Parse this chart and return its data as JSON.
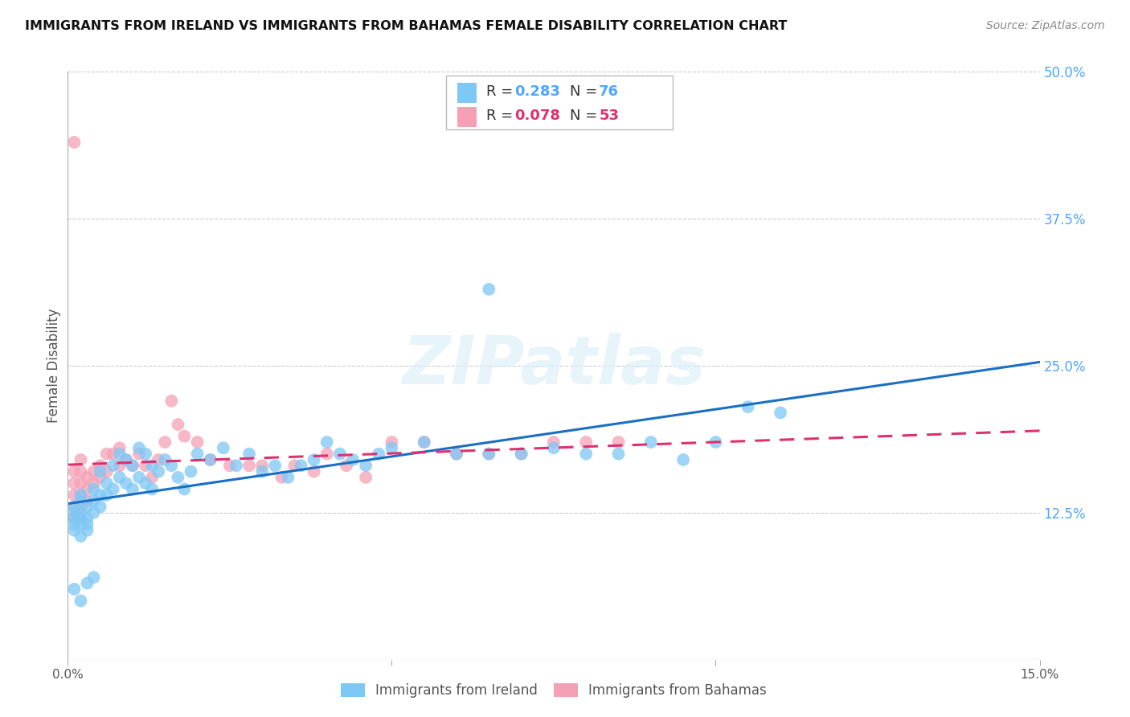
{
  "title": "IMMIGRANTS FROM IRELAND VS IMMIGRANTS FROM BAHAMAS FEMALE DISABILITY CORRELATION CHART",
  "source": "Source: ZipAtlas.com",
  "ylabel": "Female Disability",
  "xlim": [
    0.0,
    0.15
  ],
  "ylim": [
    0.0,
    0.5
  ],
  "yticks_right": [
    0.0,
    0.125,
    0.25,
    0.375,
    0.5
  ],
  "yticklabels_right": [
    "",
    "12.5%",
    "25.0%",
    "37.5%",
    "50.0%"
  ],
  "R_ireland": 0.283,
  "N_ireland": 76,
  "R_bahamas": 0.078,
  "N_bahamas": 53,
  "color_ireland": "#7ec8f5",
  "color_bahamas": "#f5a0b5",
  "line_ireland": "#1a6fc4",
  "line_bahamas": "#e03070",
  "legend_label_ireland": "Immigrants from Ireland",
  "legend_label_bahamas": "Immigrants from Bahamas",
  "ireland_x": [
    0.001,
    0.001,
    0.001,
    0.001,
    0.001,
    0.002,
    0.002,
    0.002,
    0.002,
    0.002,
    0.002,
    0.003,
    0.003,
    0.003,
    0.003,
    0.004,
    0.004,
    0.004,
    0.005,
    0.005,
    0.005,
    0.006,
    0.006,
    0.007,
    0.007,
    0.008,
    0.008,
    0.009,
    0.009,
    0.01,
    0.01,
    0.011,
    0.011,
    0.012,
    0.012,
    0.013,
    0.013,
    0.014,
    0.015,
    0.016,
    0.017,
    0.018,
    0.019,
    0.02,
    0.022,
    0.024,
    0.026,
    0.028,
    0.03,
    0.032,
    0.034,
    0.036,
    0.038,
    0.04,
    0.042,
    0.044,
    0.046,
    0.048,
    0.05,
    0.055,
    0.06,
    0.065,
    0.07,
    0.075,
    0.08,
    0.085,
    0.09,
    0.095,
    0.1,
    0.105,
    0.065,
    0.11,
    0.001,
    0.002,
    0.003,
    0.004
  ],
  "ireland_y": [
    0.13,
    0.125,
    0.12,
    0.115,
    0.11,
    0.14,
    0.135,
    0.125,
    0.12,
    0.115,
    0.105,
    0.13,
    0.12,
    0.115,
    0.11,
    0.145,
    0.135,
    0.125,
    0.16,
    0.14,
    0.13,
    0.15,
    0.14,
    0.165,
    0.145,
    0.175,
    0.155,
    0.17,
    0.15,
    0.165,
    0.145,
    0.18,
    0.155,
    0.175,
    0.15,
    0.165,
    0.145,
    0.16,
    0.17,
    0.165,
    0.155,
    0.145,
    0.16,
    0.175,
    0.17,
    0.18,
    0.165,
    0.175,
    0.16,
    0.165,
    0.155,
    0.165,
    0.17,
    0.185,
    0.175,
    0.17,
    0.165,
    0.175,
    0.18,
    0.185,
    0.175,
    0.175,
    0.175,
    0.18,
    0.175,
    0.175,
    0.185,
    0.17,
    0.185,
    0.215,
    0.315,
    0.21,
    0.06,
    0.05,
    0.065,
    0.07
  ],
  "bahamas_x": [
    0.001,
    0.001,
    0.001,
    0.001,
    0.001,
    0.002,
    0.002,
    0.002,
    0.002,
    0.002,
    0.002,
    0.003,
    0.003,
    0.003,
    0.004,
    0.004,
    0.005,
    0.005,
    0.006,
    0.006,
    0.007,
    0.008,
    0.008,
    0.009,
    0.01,
    0.011,
    0.012,
    0.013,
    0.014,
    0.015,
    0.016,
    0.017,
    0.018,
    0.02,
    0.022,
    0.025,
    0.028,
    0.03,
    0.033,
    0.035,
    0.038,
    0.04,
    0.043,
    0.046,
    0.05,
    0.055,
    0.06,
    0.065,
    0.07,
    0.075,
    0.08,
    0.085,
    0.001
  ],
  "bahamas_y": [
    0.16,
    0.15,
    0.14,
    0.13,
    0.12,
    0.17,
    0.16,
    0.15,
    0.14,
    0.13,
    0.12,
    0.155,
    0.145,
    0.135,
    0.16,
    0.15,
    0.165,
    0.155,
    0.175,
    0.16,
    0.175,
    0.18,
    0.165,
    0.17,
    0.165,
    0.175,
    0.165,
    0.155,
    0.17,
    0.185,
    0.22,
    0.2,
    0.19,
    0.185,
    0.17,
    0.165,
    0.165,
    0.165,
    0.155,
    0.165,
    0.16,
    0.175,
    0.165,
    0.155,
    0.185,
    0.185,
    0.175,
    0.175,
    0.175,
    0.185,
    0.185,
    0.185,
    0.44
  ]
}
